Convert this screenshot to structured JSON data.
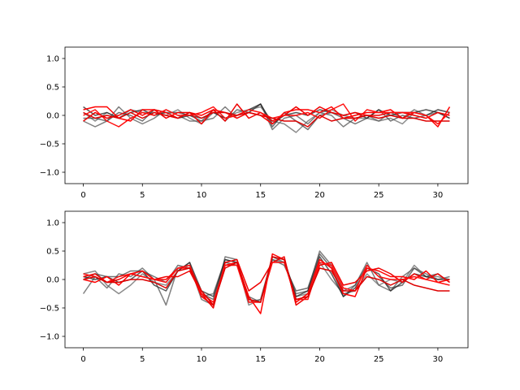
{
  "chart_data": [
    {
      "type": "line",
      "title": "",
      "xlabel": "",
      "ylabel": "",
      "xlim": [
        -1.55,
        32.55
      ],
      "ylim": [
        -1.2,
        1.2
      ],
      "xticks": [
        0,
        5,
        10,
        15,
        20,
        25,
        30
      ],
      "yticks": [
        -1.0,
        -0.5,
        0.0,
        0.5,
        1.0
      ],
      "ytick_labels": [
        "−1.0",
        "−0.5",
        "0.0",
        "0.5",
        "1.0"
      ],
      "grid": false,
      "x": [
        0,
        1,
        2,
        3,
        4,
        5,
        6,
        7,
        8,
        9,
        10,
        11,
        12,
        13,
        14,
        15,
        16,
        17,
        18,
        19,
        20,
        21,
        22,
        23,
        24,
        25,
        26,
        27,
        28,
        29,
        30,
        31
      ],
      "series": [
        {
          "color": "#555555",
          "values": [
            -0.1,
            -0.2,
            -0.1,
            0.15,
            -0.05,
            -0.15,
            -0.05,
            0.1,
            0.0,
            -0.1,
            -0.1,
            -0.05,
            0.15,
            -0.05,
            0.05,
            0.2,
            -0.25,
            -0.05,
            0.0,
            -0.15,
            0.05,
            0.0,
            -0.2,
            -0.05,
            0.0,
            -0.1,
            0.05,
            -0.05,
            0.1,
            0.0,
            0.05,
            -0.05
          ]
        },
        {
          "color": "#666666",
          "values": [
            0.05,
            -0.1,
            0.05,
            -0.05,
            0.1,
            0.05,
            0.05,
            0.0,
            0.1,
            -0.05,
            -0.15,
            0.05,
            -0.05,
            0.05,
            0.1,
            0.15,
            -0.1,
            -0.15,
            -0.3,
            -0.1,
            0.05,
            0.1,
            0.0,
            -0.05,
            -0.05,
            -0.1,
            -0.05,
            -0.15,
            0.05,
            0.0,
            0.1,
            0.05
          ]
        },
        {
          "color": "#444444",
          "values": [
            -0.05,
            -0.05,
            -0.1,
            0.05,
            0.0,
            -0.1,
            0.1,
            0.05,
            0.05,
            0.0,
            -0.1,
            0.1,
            -0.1,
            0.1,
            0.05,
            0.2,
            -0.2,
            0.05,
            -0.1,
            -0.25,
            0.0,
            0.05,
            -0.05,
            -0.15,
            -0.05,
            0.1,
            -0.1,
            0.0,
            -0.05,
            0.0,
            0.1,
            0.05
          ]
        },
        {
          "color": "#222222",
          "values": [
            0.15,
            0.0,
            0.05,
            -0.05,
            0.05,
            0.1,
            0.0,
            0.05,
            -0.05,
            0.0,
            -0.05,
            0.05,
            -0.05,
            0.0,
            0.1,
            0.2,
            -0.15,
            0.0,
            0.05,
            0.0,
            0.1,
            0.05,
            0.0,
            0.05,
            -0.05,
            0.1,
            0.0,
            0.05,
            0.05,
            0.1,
            0.05,
            -0.05
          ]
        },
        {
          "color": "#ff0000",
          "values": [
            0.1,
            0.15,
            0.15,
            -0.05,
            -0.1,
            0.1,
            0.1,
            0.05,
            -0.05,
            0.05,
            0.0,
            0.1,
            0.05,
            -0.05,
            0.05,
            0.0,
            -0.15,
            0.05,
            0.1,
            0.1,
            0.05,
            0.15,
            -0.05,
            0.0,
            0.05,
            0.05,
            0.1,
            -0.05,
            0.05,
            0.0,
            -0.2,
            0.15
          ]
        },
        {
          "color": "#ee0000",
          "values": [
            -0.1,
            0.05,
            -0.05,
            0.0,
            0.1,
            0.0,
            0.1,
            -0.05,
            0.05,
            0.05,
            -0.15,
            0.1,
            -0.1,
            0.2,
            -0.05,
            0.05,
            -0.1,
            0.0,
            0.15,
            0.0,
            0.15,
            0.05,
            0.0,
            0.05,
            0.0,
            0.0,
            0.05,
            0.05,
            0.0,
            -0.05,
            0.05,
            0.0
          ]
        },
        {
          "color": "#ff1010",
          "values": [
            0.0,
            0.1,
            -0.1,
            -0.2,
            -0.05,
            0.05,
            0.0,
            0.1,
            0.0,
            0.0,
            0.05,
            0.15,
            -0.05,
            0.0,
            0.1,
            0.05,
            -0.05,
            0.0,
            0.0,
            0.05,
            -0.05,
            0.1,
            0.2,
            -0.1,
            0.1,
            0.05,
            0.05,
            0.05,
            0.05,
            0.0,
            -0.15,
            0.05
          ]
        },
        {
          "color": "#dd0000",
          "values": [
            0.05,
            -0.05,
            0.0,
            -0.05,
            0.05,
            -0.05,
            0.05,
            0.0,
            -0.05,
            0.05,
            -0.05,
            0.05,
            0.05,
            0.0,
            0.05,
            0.0,
            -0.05,
            -0.1,
            -0.1,
            -0.2,
            0.0,
            -0.1,
            -0.05,
            -0.05,
            0.0,
            -0.05,
            0.0,
            -0.05,
            -0.05,
            -0.1,
            -0.1,
            -0.1
          ]
        }
      ]
    },
    {
      "type": "line",
      "title": "",
      "xlabel": "",
      "ylabel": "",
      "xlim": [
        -1.55,
        32.55
      ],
      "ylim": [
        -1.2,
        1.2
      ],
      "xticks": [
        0,
        5,
        10,
        15,
        20,
        25,
        30
      ],
      "yticks": [
        -1.0,
        -0.5,
        0.0,
        0.5,
        1.0
      ],
      "ytick_labels": [
        "−1.0",
        "−0.5",
        "0.0",
        "0.5",
        "1.0"
      ],
      "grid": false,
      "x": [
        0,
        1,
        2,
        3,
        4,
        5,
        6,
        7,
        8,
        9,
        10,
        11,
        12,
        13,
        14,
        15,
        16,
        17,
        18,
        19,
        20,
        21,
        22,
        23,
        24,
        25,
        26,
        27,
        28,
        29,
        30,
        31
      ],
      "series": [
        {
          "color": "#555555",
          "values": [
            -0.25,
            0.05,
            -0.15,
            0.1,
            0.05,
            0.2,
            0.0,
            -0.45,
            0.2,
            0.25,
            -0.35,
            -0.45,
            0.4,
            0.35,
            -0.4,
            -0.35,
            0.4,
            0.3,
            -0.25,
            -0.2,
            0.5,
            0.25,
            -0.2,
            -0.1,
            0.3,
            -0.1,
            -0.2,
            0.05,
            0.2,
            0.1,
            0.0,
            0.05
          ]
        },
        {
          "color": "#666666",
          "values": [
            0.1,
            0.15,
            -0.1,
            -0.25,
            -0.1,
            0.1,
            -0.05,
            -0.1,
            0.15,
            0.3,
            -0.3,
            -0.25,
            0.35,
            0.3,
            -0.45,
            -0.35,
            0.35,
            0.3,
            -0.3,
            -0.25,
            0.3,
            0.0,
            -0.25,
            -0.2,
            0.1,
            -0.1,
            0.0,
            -0.05,
            0.25,
            0.05,
            0.05,
            0.0
          ]
        },
        {
          "color": "#444444",
          "values": [
            0.0,
            0.1,
            0.05,
            0.05,
            0.15,
            0.15,
            0.05,
            -0.05,
            0.25,
            0.2,
            -0.25,
            -0.35,
            0.3,
            0.25,
            -0.3,
            -0.4,
            0.35,
            0.25,
            -0.2,
            -0.15,
            0.45,
            0.2,
            -0.3,
            -0.1,
            0.25,
            0.05,
            -0.15,
            -0.1,
            0.2,
            0.05,
            0.1,
            -0.05
          ]
        },
        {
          "color": "#222222",
          "values": [
            0.05,
            0.0,
            0.05,
            -0.05,
            0.0,
            0.15,
            -0.1,
            -0.2,
            0.15,
            0.3,
            -0.2,
            -0.3,
            0.35,
            0.3,
            -0.35,
            -0.4,
            0.4,
            0.35,
            -0.3,
            -0.2,
            0.4,
            0.1,
            -0.3,
            -0.15,
            0.2,
            0.1,
            -0.2,
            -0.05,
            0.1,
            0.05,
            0.0,
            0.0
          ]
        },
        {
          "color": "#ff0000",
          "values": [
            0.0,
            -0.05,
            0.05,
            -0.1,
            0.1,
            0.15,
            0.0,
            0.0,
            0.2,
            0.2,
            -0.3,
            -0.45,
            0.25,
            0.3,
            -0.3,
            -0.6,
            0.45,
            0.35,
            -0.4,
            -0.25,
            0.35,
            0.2,
            -0.25,
            -0.3,
            0.2,
            0.15,
            0.05,
            0.05,
            0.0,
            0.15,
            -0.05,
            0.0
          ]
        },
        {
          "color": "#ee0000",
          "values": [
            0.05,
            0.1,
            -0.05,
            0.0,
            0.1,
            0.05,
            0.0,
            0.05,
            0.05,
            0.15,
            -0.25,
            -0.5,
            0.3,
            0.35,
            -0.2,
            -0.05,
            0.3,
            0.4,
            -0.45,
            -0.3,
            0.25,
            0.3,
            -0.1,
            -0.05,
            0.15,
            0.2,
            0.1,
            -0.05,
            0.1,
            0.0,
            0.1,
            -0.05
          ]
        },
        {
          "color": "#ff1010",
          "values": [
            0.1,
            0.05,
            -0.05,
            0.05,
            0.1,
            0.05,
            0.0,
            -0.05,
            0.2,
            0.25,
            -0.25,
            -0.4,
            0.25,
            0.25,
            -0.4,
            -0.4,
            0.3,
            0.3,
            -0.35,
            -0.35,
            0.3,
            0.25,
            -0.15,
            -0.2,
            0.25,
            0.05,
            0.0,
            0.0,
            0.05,
            0.0,
            -0.05,
            -0.1
          ]
        },
        {
          "color": "#dd0000",
          "values": [
            0.0,
            0.05,
            -0.05,
            -0.05,
            0.0,
            0.0,
            -0.05,
            -0.15,
            0.15,
            0.2,
            -0.2,
            -0.45,
            0.2,
            0.3,
            -0.35,
            -0.4,
            0.4,
            0.35,
            -0.35,
            -0.3,
            0.2,
            0.15,
            -0.2,
            -0.2,
            0.05,
            0.0,
            -0.1,
            0.0,
            -0.1,
            -0.15,
            -0.2,
            -0.2
          ]
        }
      ]
    }
  ]
}
